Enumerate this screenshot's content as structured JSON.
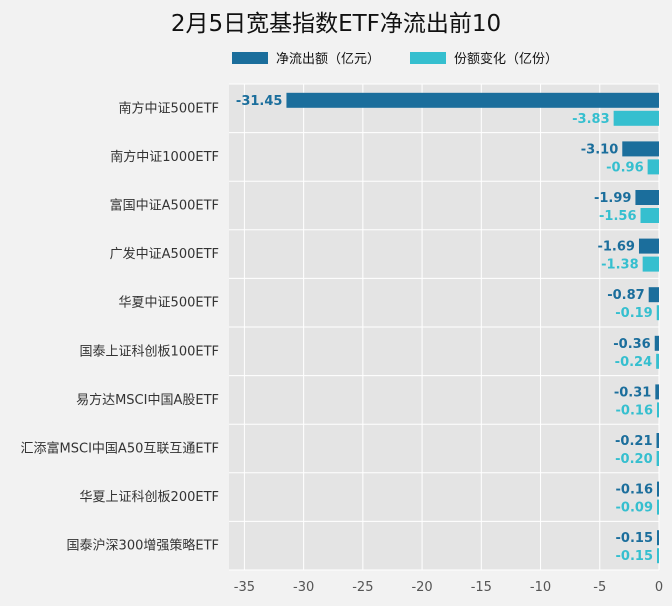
{
  "chart_data": {
    "type": "bar",
    "orientation": "horizontal",
    "title": "2月5日宽基指数ETF净流出前10",
    "categories": [
      "南方中证500ETF",
      "南方中证1000ETF",
      "富国中证A500ETF",
      "广发中证A500ETF",
      "华夏中证500ETF",
      "国泰上证科创板100ETF",
      "易方达MSCI中国A股ETF",
      "汇添富MSCI中国A50互联互通ETF",
      "华夏上证科创板200ETF",
      "国泰沪深300增强策略ETF"
    ],
    "series": [
      {
        "name": "净流出额（亿元）",
        "color": "#1b6e9c",
        "values": [
          -31.45,
          -3.1,
          -1.99,
          -1.69,
          -0.87,
          -0.36,
          -0.31,
          -0.21,
          -0.16,
          -0.15
        ],
        "labels": [
          "-31.45",
          "-3.10",
          "-1.99",
          "-1.69",
          "-0.87",
          "-0.36",
          "-0.31",
          "-0.21",
          "-0.16",
          "-0.15"
        ]
      },
      {
        "name": "份额变化（亿份）",
        "color": "#35bfcf",
        "values": [
          -3.83,
          -0.96,
          -1.56,
          -1.38,
          -0.19,
          -0.24,
          -0.16,
          -0.2,
          -0.09,
          -0.15
        ],
        "labels": [
          "-3.83",
          "-0.96",
          "-1.56",
          "-1.38",
          "-0.19",
          "-0.24",
          "-0.16",
          "-0.20",
          "-0.09",
          "-0.15"
        ]
      }
    ],
    "xlim": [
      -36.3,
      0
    ],
    "xticks": [
      -35,
      -30,
      -25,
      -20,
      -15,
      -10,
      -5,
      0
    ],
    "grid": true,
    "legend_position": "top"
  }
}
